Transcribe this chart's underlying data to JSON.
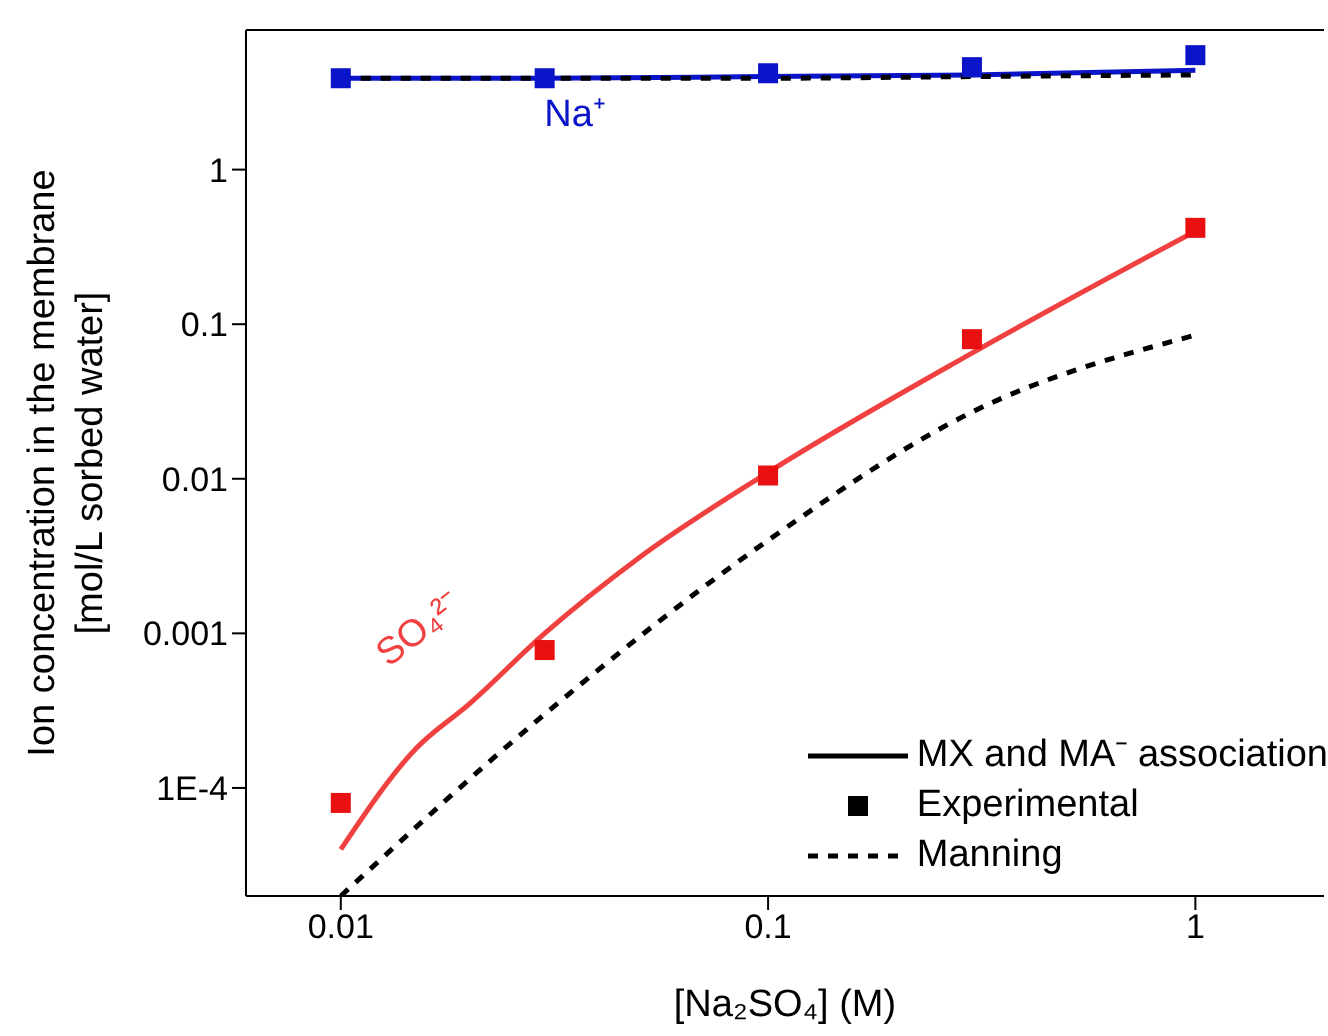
{
  "chart_data": {
    "type": "line",
    "xlabel": "[Na₂SO₄] (M)",
    "ylabel": "Ion concentration in the membrane\n[mol/L sorbed water]",
    "log": "xy",
    "xlim": [
      0.006,
      2
    ],
    "ylim": [
      2e-05,
      8
    ],
    "xticks": [
      0.01,
      0.1,
      1
    ],
    "yticks": [
      {
        "value": 0.0001,
        "label": "1E-4"
      },
      0.001,
      0.01,
      0.1,
      1
    ],
    "legend": "bottom right",
    "line_style": "solid",
    "series": [
      {
        "name": "Na⁺",
        "color": "#0a14c8",
        "x": [
          0.01,
          0.03,
          0.1,
          0.3,
          1
        ],
        "values": [
          3.9,
          3.9,
          4.0,
          4.1,
          4.4
        ]
      },
      {
        "name": "SO₄²⁻",
        "color": "#f04040",
        "x": [
          0.01,
          0.015,
          0.02,
          0.03,
          0.05,
          0.1,
          0.3,
          1
        ],
        "values": [
          4e-05,
          0.00018,
          0.00035,
          0.001,
          0.0031,
          0.011,
          0.065,
          0.4
        ]
      },
      {
        "type": "scatter",
        "marker": "square",
        "color": "#0a14c8",
        "x": [
          0.01,
          0.03,
          0.1,
          0.3,
          1
        ],
        "values": [
          3.9,
          3.9,
          4.2,
          4.6,
          5.5
        ]
      },
      {
        "type": "scatter",
        "marker": "square",
        "color": "#e81010",
        "x": [
          0.01,
          0.03,
          0.1,
          0.3,
          1
        ],
        "values": [
          8e-05,
          0.00078,
          0.0105,
          0.08,
          0.42
        ]
      },
      {
        "line_style": "dashed",
        "color": "#000000",
        "x": [
          0.01,
          0.03,
          0.1,
          0.3,
          1
        ],
        "values": [
          3.9,
          3.9,
          3.9,
          4.0,
          4.1
        ]
      },
      {
        "line_style": "dashed",
        "color": "#000000",
        "x": [
          0.01,
          0.03,
          0.1,
          0.3,
          1
        ],
        "values": [
          2e-05,
          0.0003,
          0.004,
          0.027,
          0.085
        ]
      },
      {
        "name": "MX and MA⁻ association",
        "color": "#000000",
        "values": [
          null
        ]
      },
      {
        "name": "Experimental",
        "type": "scatter",
        "marker": "square",
        "color": "#000000",
        "values": [
          null
        ]
      },
      {
        "name": "Manning",
        "line_style": "dashed",
        "color": "#000000",
        "values": [
          null
        ]
      }
    ]
  }
}
